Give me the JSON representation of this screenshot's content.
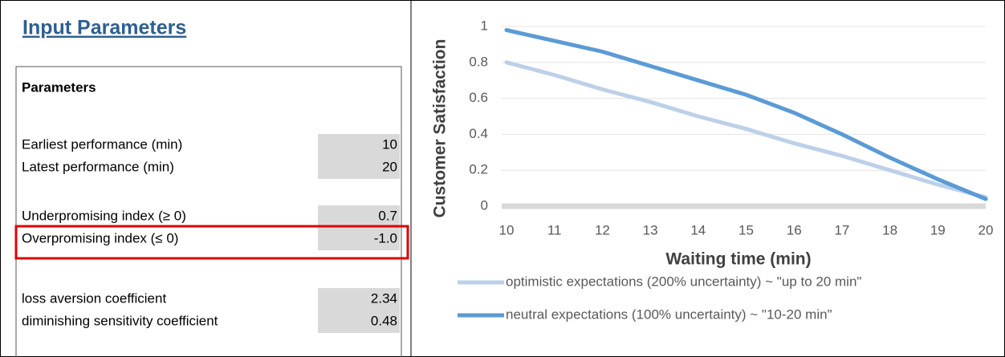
{
  "panel": {
    "title": "Input Parameters",
    "table": {
      "header": "Parameters",
      "rows": [
        [
          "Earliest performance (min)",
          "10"
        ],
        [
          "Latest performance (min)",
          "20"
        ],
        [
          "Underpromising index (≥ 0)",
          "0.7"
        ],
        [
          "Overpromising index (≤ 0)",
          "-1.0"
        ],
        [
          "loss aversion coefficient",
          "2.34"
        ],
        [
          "diminishing sensitivity coefficient",
          "0.48"
        ]
      ]
    }
  },
  "chart_data": {
    "type": "line",
    "x_label": "Waiting time (min)",
    "y_label": "Customer Satisfaction",
    "x": [
      10,
      11,
      12,
      13,
      14,
      15,
      16,
      17,
      18,
      19,
      20
    ],
    "xlim": [
      10,
      20
    ],
    "xticks": [
      10,
      11,
      12,
      13,
      14,
      15,
      16,
      17,
      18,
      19,
      20
    ],
    "ylim": [
      0,
      1
    ],
    "yticks": [
      0,
      0.2,
      0.4,
      0.6,
      0.8,
      1
    ],
    "grid": true,
    "series": [
      {
        "name": "optimistic expectations (200% uncertainty) ~ \"up to 20 min\"",
        "color": "#bdd0e9",
        "values": [
          0.8,
          0.73,
          0.65,
          0.58,
          0.5,
          0.43,
          0.35,
          0.28,
          0.2,
          0.12,
          0.05
        ]
      },
      {
        "name": "neutral expectations (100% uncertainty) ~ \"10-20 min\"",
        "color": "#5b9bd5",
        "values": [
          0.98,
          0.92,
          0.86,
          0.78,
          0.7,
          0.62,
          0.52,
          0.4,
          0.27,
          0.15,
          0.04
        ]
      }
    ]
  }
}
